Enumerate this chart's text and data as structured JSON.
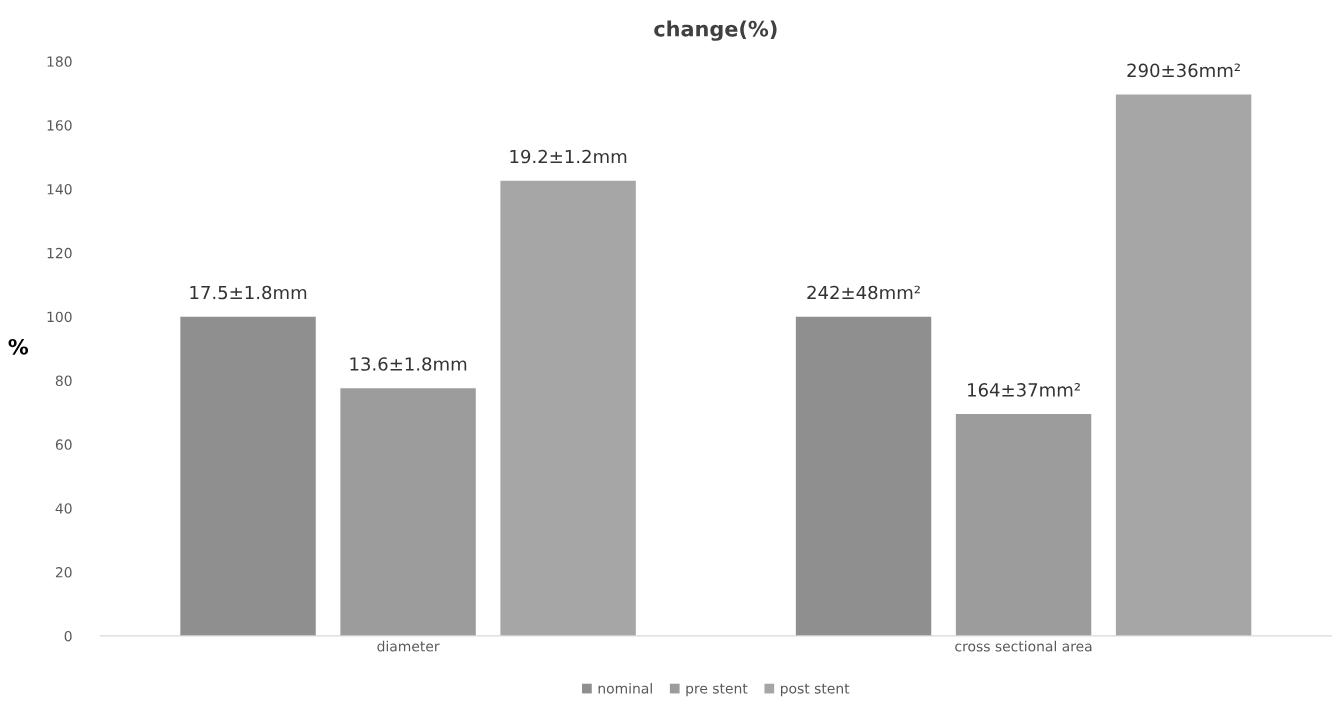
{
  "chart_data": {
    "type": "bar",
    "title": "change(%)",
    "ylabel": "%",
    "categories": [
      "diameter",
      "cross sectional area"
    ],
    "series": [
      {
        "name": "nominal",
        "color": "#8f8f8f",
        "values": [
          100,
          100
        ]
      },
      {
        "name": "pre stent",
        "color": "#9c9c9c",
        "values": [
          77.6,
          69.5
        ]
      },
      {
        "name": "post stent",
        "color": "#a6a6a6",
        "values": [
          142.6,
          169.6
        ]
      }
    ],
    "annotations": [
      "17.5±1.8mm",
      "242±48mm²",
      "13.6±1.8mm",
      "164±37mm²",
      "19.2±1.2mm",
      "290±36mm²"
    ],
    "ylim": [
      0,
      180
    ],
    "yticks": [
      0,
      20,
      40,
      60,
      80,
      100,
      120,
      140,
      160,
      180
    ],
    "grid": false,
    "legend": "bottom"
  }
}
